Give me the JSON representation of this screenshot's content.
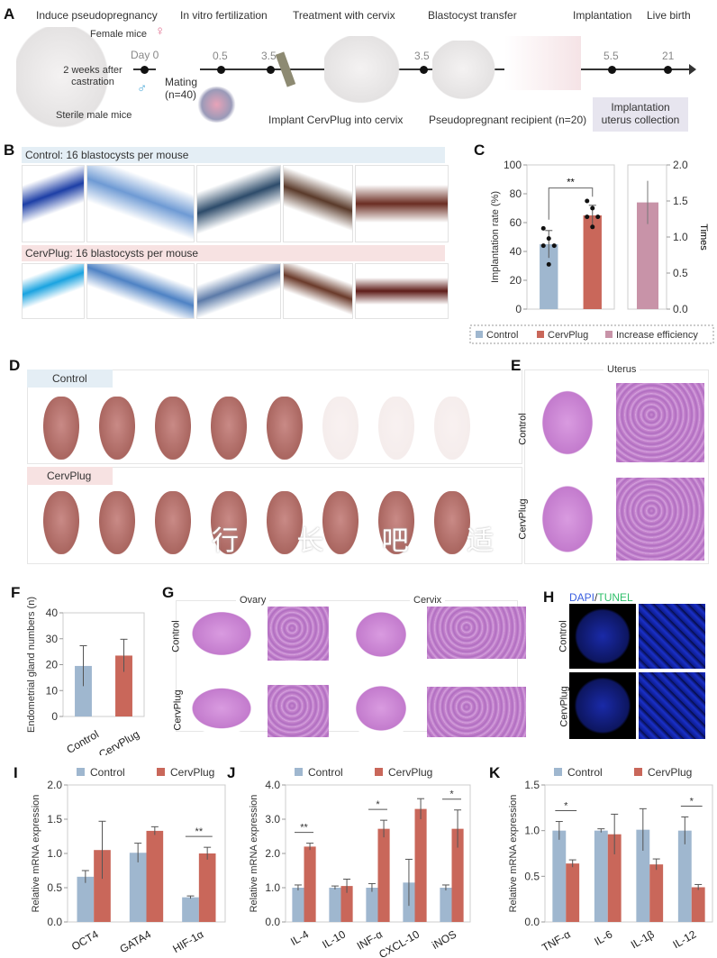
{
  "panels": {
    "A": "A",
    "B": "B",
    "C": "C",
    "D": "D",
    "E": "E",
    "F": "F",
    "G": "G",
    "H": "H",
    "I": "I",
    "J": "J",
    "K": "K"
  },
  "panelA": {
    "steps": [
      "Induce pseudopregnancy",
      "In vitro fertilization",
      "Treatment with cervix",
      "Blastocyst transfer",
      "Implantation",
      "Live birth"
    ],
    "female": "Female mice",
    "female_symbol": "♀",
    "male_symbol": "♂",
    "castration": "2 weeks after castration",
    "sterile_male": "Sterile male mice",
    "mating": "Mating (n=40)",
    "implant_text": "Implant CervPlug into cervix",
    "recipient": "Pseudopregnant recipient (n=20)",
    "collection": "Implantation uterus collection",
    "days": [
      "Day 0",
      "0.5",
      "3.5",
      "3.5",
      "5.5",
      "21"
    ]
  },
  "panelB": {
    "control_title": "Control: 16 blastocysts per mouse",
    "cervplug_title": "CervPlug: 16 blastocysts per mouse"
  },
  "panelD": {
    "control": "Control",
    "cervplug": "CervPlug",
    "watermark": "行 长 吧 适 喜"
  },
  "panelE": {
    "title": "Uterus",
    "row1": "Control",
    "row2": "CervPlug"
  },
  "panelG": {
    "ovary": "Ovary",
    "cervix": "Cervix",
    "row1": "Control",
    "row2": "CervPlug"
  },
  "panelH": {
    "dapi": "DAPI",
    "slash": "/",
    "tunel": "TUNEL",
    "row1": "Control",
    "row2": "CervPlug",
    "dapi_color": "#3a5fe0",
    "tunel_color": "#2fbf6a"
  },
  "colors": {
    "control": "#9fb7cf",
    "cervplug": "#c9675a",
    "increase": "#c893a8"
  },
  "chart_data": [
    {
      "id": "C",
      "type": "bar",
      "categories": [
        "Control",
        "CervPlug"
      ],
      "values": [
        45,
        65
      ],
      "errors": [
        9.5,
        7
      ],
      "points": [
        [
          56,
          49,
          44,
          44,
          31
        ],
        [
          75,
          70,
          64,
          64,
          57
        ]
      ],
      "ylabel": "Implantation rate (%)",
      "ylim": [
        0,
        100
      ],
      "yticks": [
        "0",
        "20",
        "40",
        "60",
        "80",
        "100"
      ],
      "significance": [
        {
          "between": [
            "Control",
            "CervPlug"
          ],
          "label": "**"
        }
      ],
      "secondary": {
        "category": "Increase efficiency",
        "value": 1.48,
        "error": 0.3,
        "ylabel": "Times",
        "ylim": [
          0,
          2
        ],
        "yticks": [
          "0.0",
          "0.5",
          "1.0",
          "1.5",
          "2.0"
        ]
      },
      "legend": [
        "Control",
        "CervPlug",
        "Increase efficiency"
      ],
      "legend_position": "bottom"
    },
    {
      "id": "F",
      "type": "bar",
      "categories": [
        "Control",
        "CervPlug"
      ],
      "values": [
        19.5,
        23.5
      ],
      "errors": [
        7.8,
        6.3
      ],
      "ylabel": "Endometrial gland numbers (n)",
      "ylim": [
        0,
        40
      ],
      "yticks": [
        "0",
        "10",
        "20",
        "30",
        "40"
      ]
    },
    {
      "id": "I",
      "type": "bar",
      "categories": [
        "OCT4",
        "GATA4",
        "HIF-1α"
      ],
      "series": [
        {
          "name": "Control",
          "values": [
            0.66,
            1.01,
            0.36
          ],
          "errors": [
            0.09,
            0.14,
            0.02
          ]
        },
        {
          "name": "CervPlug",
          "values": [
            1.05,
            1.33,
            1.0
          ],
          "errors": [
            0.42,
            0.06,
            0.09
          ]
        }
      ],
      "significance": [
        "",
        "",
        "**"
      ],
      "ylabel": "Relative mRNA expression",
      "ylim": [
        0,
        2
      ],
      "yticks": [
        "0.0",
        "0.5",
        "1.0",
        "1.5",
        "2.0"
      ],
      "legend_position": "top"
    },
    {
      "id": "J",
      "type": "bar",
      "categories": [
        "IL-4",
        "IL-10",
        "INF-α",
        "CXCL-10",
        "iNOS"
      ],
      "series": [
        {
          "name": "Control",
          "values": [
            1.0,
            1.0,
            1.0,
            1.15,
            1.0
          ],
          "errors": [
            0.08,
            0.05,
            0.12,
            0.68,
            0.08
          ]
        },
        {
          "name": "CervPlug",
          "values": [
            2.2,
            1.05,
            2.72,
            3.3,
            2.72
          ],
          "errors": [
            0.1,
            0.2,
            0.25,
            0.3,
            0.55
          ]
        }
      ],
      "significance": [
        "**",
        "",
        "*",
        "",
        "*"
      ],
      "ylabel": "Relative mRNA expression",
      "ylim": [
        0,
        4
      ],
      "yticks": [
        "0.0",
        "1.0",
        "2.0",
        "3.0",
        "4.0"
      ],
      "legend_position": "top"
    },
    {
      "id": "K",
      "type": "bar",
      "categories": [
        "TNF-α",
        "IL-6",
        "IL-1β",
        "IL-12"
      ],
      "series": [
        {
          "name": "Control",
          "values": [
            1.0,
            1.0,
            1.01,
            1.0
          ],
          "errors": [
            0.1,
            0.02,
            0.23,
            0.15
          ]
        },
        {
          "name": "CervPlug",
          "values": [
            0.64,
            0.96,
            0.63,
            0.38
          ],
          "errors": [
            0.04,
            0.22,
            0.06,
            0.03
          ]
        }
      ],
      "significance": [
        "*",
        "",
        "",
        "*"
      ],
      "ylabel": "Relative mRNA expression",
      "ylim": [
        0,
        1.5
      ],
      "yticks": [
        "0.0",
        "0.5",
        "1.0",
        "1.5"
      ],
      "legend_position": "top"
    }
  ]
}
